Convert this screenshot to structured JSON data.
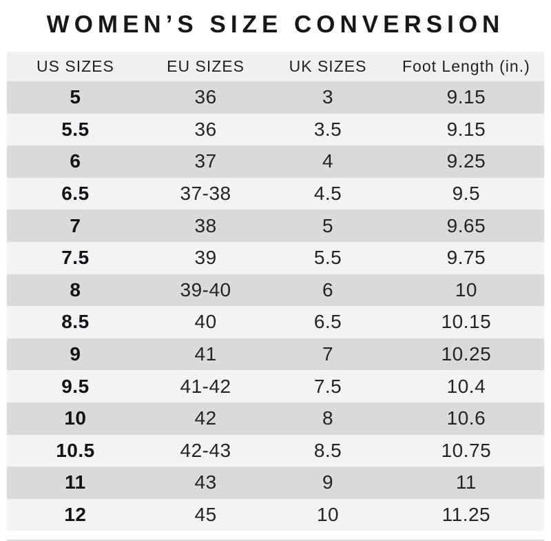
{
  "title": "WOMEN’S SIZE CONVERSION",
  "table": {
    "headers": [
      "US SIZES",
      "EU SIZES",
      "UK SIZES",
      "Foot Length (in.)"
    ]
  },
  "chart_data": {
    "type": "table",
    "title": "WOMEN’S SIZE CONVERSION",
    "columns": [
      "US SIZES",
      "EU SIZES",
      "UK SIZES",
      "Foot Length (in.)"
    ],
    "rows": [
      [
        "5",
        "36",
        "3",
        "9.15"
      ],
      [
        "5.5",
        "36",
        "3.5",
        "9.15"
      ],
      [
        "6",
        "37",
        "4",
        "9.25"
      ],
      [
        "6.5",
        "37-38",
        "4.5",
        "9.5"
      ],
      [
        "7",
        "38",
        "5",
        "9.65"
      ],
      [
        "7.5",
        "39",
        "5.5",
        "9.75"
      ],
      [
        "8",
        "39-40",
        "6",
        "10"
      ],
      [
        "8.5",
        "40",
        "6.5",
        "10.15"
      ],
      [
        "9",
        "41",
        "7",
        "10.25"
      ],
      [
        "9.5",
        "41-42",
        "7.5",
        "10.4"
      ],
      [
        "10",
        "42",
        "8",
        "10.6"
      ],
      [
        "10.5",
        "42-43",
        "8.5",
        "10.75"
      ],
      [
        "11",
        "43",
        "9",
        "11"
      ],
      [
        "12",
        "45",
        "10",
        "11.25"
      ]
    ],
    "layout": {
      "row_striping": "alternating, first data row shaded",
      "bold_column": "US SIZES"
    }
  },
  "colors": {
    "background": "#ffffff",
    "header_bg": "#f0f0ee",
    "row_shaded": "#d9dadb",
    "row_light": "#f2f3f4",
    "text": "#232427",
    "title_text": "#17181a"
  }
}
